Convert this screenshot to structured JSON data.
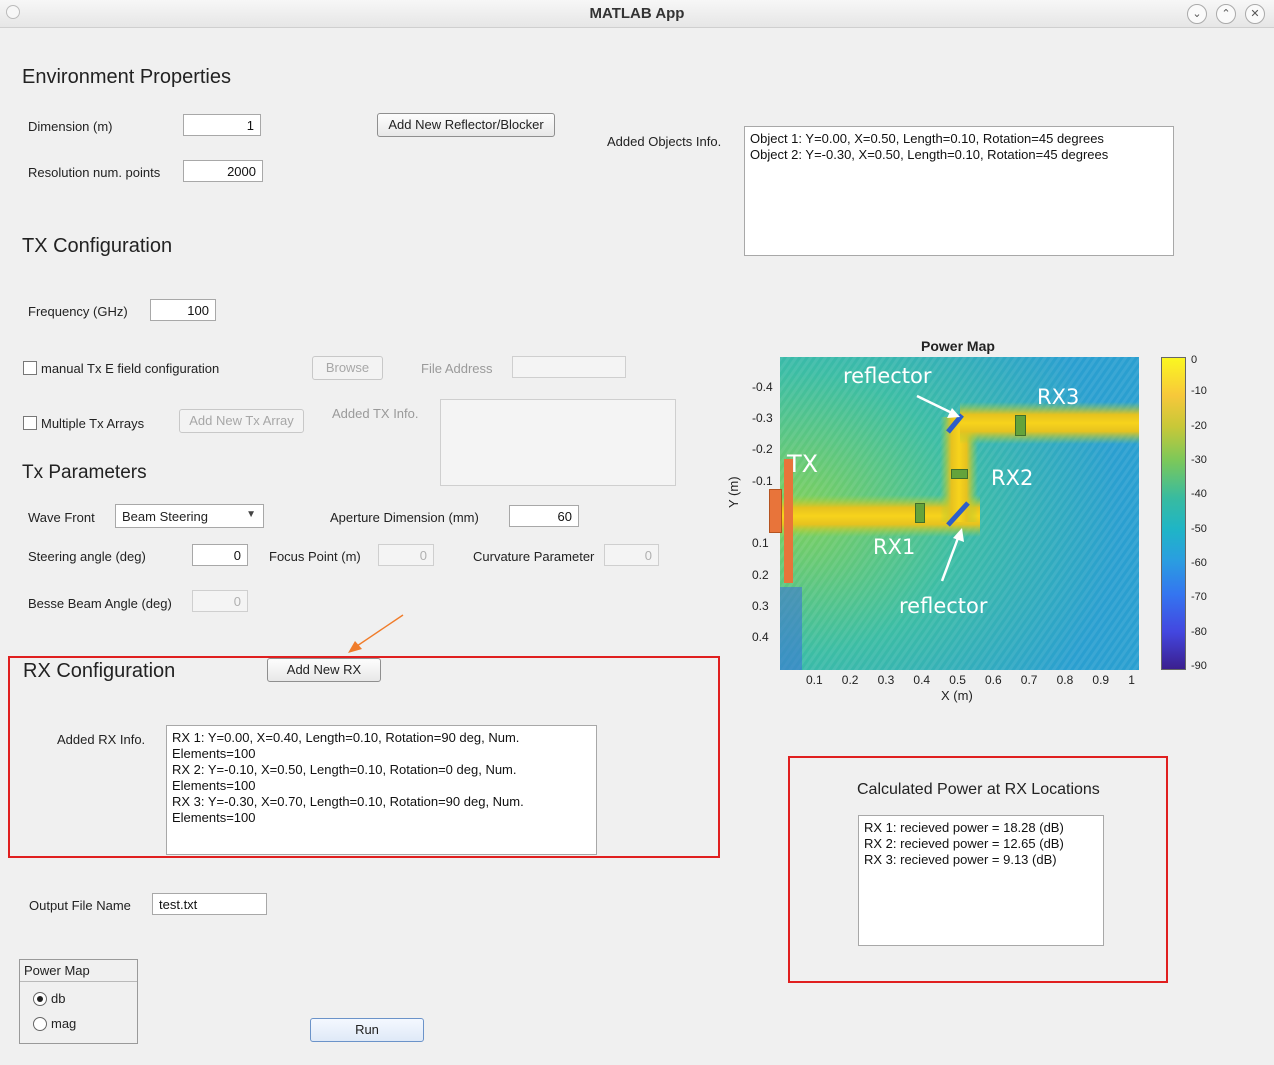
{
  "window": {
    "title": "MATLAB App"
  },
  "env": {
    "heading": "Environment Properties",
    "dimension_label": "Dimension (m)",
    "dimension_value": "1",
    "resolution_label": "Resolution num. points",
    "resolution_value": "2000",
    "add_reflector_label": "Add New Reflector/Blocker",
    "added_objects_label": "Added Objects Info.",
    "added_objects": [
      "Object 1: Y=0.00, X=0.50, Length=0.10, Rotation=45 degrees",
      "Object 2: Y=-0.30, X=0.50, Length=0.10, Rotation=45 degrees"
    ]
  },
  "tx": {
    "heading": "TX Configuration",
    "frequency_label": "Frequency (GHz)",
    "frequency_value": "100",
    "manual_label": "manual Tx E field configuration",
    "browse_label": "Browse",
    "file_address_label": "File Address",
    "multiple_label": "Multiple Tx Arrays",
    "add_tx_label": "Add New Tx Array",
    "added_tx_label": "Added TX Info."
  },
  "params": {
    "heading": "Tx Parameters",
    "wavefront_label": "Wave Front",
    "wavefront_value": "Beam Steering",
    "aperture_label": "Aperture Dimension (mm)",
    "aperture_value": "60",
    "steering_label": "Steering angle (deg)",
    "steering_value": "0",
    "focus_label": "Focus Point (m)",
    "focus_value": "0",
    "curvature_label": "Curvature Parameter",
    "curvature_value": "0",
    "bessel_label": "Besse Beam Angle (deg)",
    "bessel_value": "0"
  },
  "rx": {
    "heading": "RX Configuration",
    "add_rx_label": "Add New RX",
    "added_rx_label": "Added RX Info.",
    "info_lines": [
      "RX 1: Y=0.00, X=0.40, Length=0.10, Rotation=90 deg, Num.",
      "Elements=100",
      "RX 2: Y=-0.10, X=0.50, Length=0.10, Rotation=0 deg, Num.",
      "Elements=100",
      "RX 3: Y=-0.30, X=0.70, Length=0.10, Rotation=90 deg, Num.",
      "Elements=100"
    ]
  },
  "output": {
    "label": "Output File Name",
    "value": "test.txt"
  },
  "powermap_group": {
    "title": "Power Map",
    "options": [
      "db",
      "mag"
    ],
    "selected": "db"
  },
  "run_label": "Run",
  "power_map": {
    "title": "Power Map",
    "xlabel": "X (m)",
    "ylabel": "Y (m)",
    "xticks": [
      "0.1",
      "0.2",
      "0.3",
      "0.4",
      "0.5",
      "0.6",
      "0.7",
      "0.8",
      "0.9",
      "1"
    ],
    "yticks": [
      "-0.4",
      "-0.3",
      "-0.2",
      "-0.1",
      "0.1",
      "0.2",
      "0.3",
      "0.4"
    ],
    "colorbar_ticks": [
      "0",
      "-10",
      "-20",
      "-30",
      "-40",
      "-50",
      "-60",
      "-70",
      "-80",
      "-90"
    ],
    "annotations": {
      "reflector_top": "reflector",
      "reflector_bottom": "reflector",
      "tx": "TX",
      "rx1": "RX1",
      "rx2": "RX2",
      "rx3": "RX3"
    }
  },
  "calc": {
    "heading": "Calculated Power at RX Locations",
    "lines": [
      "RX 1: recieved power = 18.28 (dB)",
      "RX 2: recieved power = 12.65 (dB)",
      "RX 3: recieved power = 9.13 (dB)"
    ]
  },
  "colors": {
    "highlight_border": "#e01f1f",
    "arrow": "#f07c2a",
    "tx_bar": "#e8743a",
    "rx_marker": "#63a33b"
  }
}
